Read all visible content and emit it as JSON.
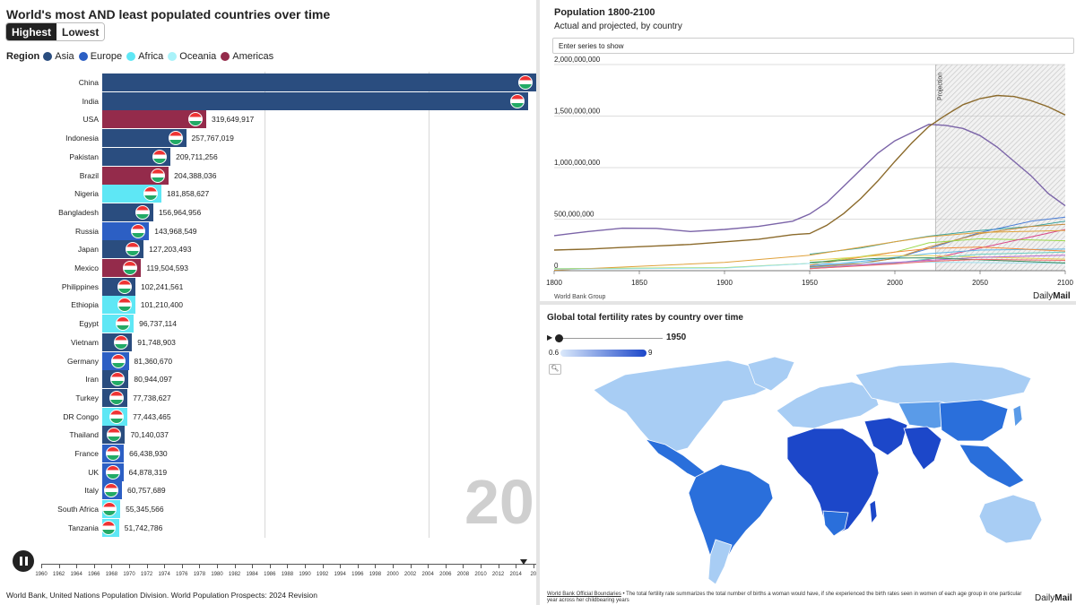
{
  "bar_panel": {
    "title": "World's most AND least populated countries over time",
    "toggle": {
      "highest": "Highest",
      "lowest": "Lowest",
      "active": "highest"
    },
    "legend_title": "Region",
    "regions": [
      {
        "name": "Asia",
        "color": "#2a4d7f"
      },
      {
        "name": "Europe",
        "color": "#2c5fc4"
      },
      {
        "name": "Africa",
        "color": "#5ee7f5"
      },
      {
        "name": "Oceania",
        "color": "#a9f2f9"
      },
      {
        "name": "Americas",
        "color": "#942b4b"
      }
    ],
    "year_watermark": "20",
    "source": "World Bank, United Nations Population Division. World Population Prospects: 2024 Revision",
    "timeline_ticks": [
      "1960",
      "1962",
      "1964",
      "1966",
      "1968",
      "1970",
      "1972",
      "1974",
      "1976",
      "1978",
      "1980",
      "1982",
      "1984",
      "1986",
      "1988",
      "1990",
      "1992",
      "1994",
      "1996",
      "1998",
      "2000",
      "2002",
      "2004",
      "2006",
      "2008",
      "2010",
      "2012",
      "2014",
      "20"
    ]
  },
  "line_panel": {
    "title": "Population 1800-2100",
    "subtitle": "Actual and projected, by country",
    "search_placeholder": "Enter series to show",
    "projection_label": "Projection",
    "source": "World Bank Group",
    "brand_left": "Daily",
    "brand_right": "Mail"
  },
  "map_panel": {
    "title": "Global total fertility rates by country over time",
    "play_icon": "play-icon",
    "year": "1950",
    "scale_min": "0.6",
    "scale_max": "9",
    "footnote_link": "World Bank Official Boundaries",
    "footnote_text": " • The total fertility rate summarizes the total number of births a woman would have, if she experienced the birth rates seen in women of each age group in one particular year across her childbearing years",
    "brand_left": "Daily",
    "brand_right": "Mail",
    "colors": {
      "low": "#a8cdf4",
      "mid": "#5a9be8",
      "high": "#2a6fdb",
      "very_high": "#1c47c9"
    }
  },
  "chart_data": [
    {
      "type": "bar",
      "title": "World's most AND least populated countries over time",
      "orientation": "horizontal",
      "categories": [
        "China",
        "India",
        "USA",
        "Indonesia",
        "Pakistan",
        "Brazil",
        "Nigeria",
        "Bangladesh",
        "Russia",
        "Japan",
        "Mexico",
        "Philippines",
        "Ethiopia",
        "Egypt",
        "Vietnam",
        "Germany",
        "Iran",
        "Turkey",
        "DR Congo",
        "Thailand",
        "France",
        "UK",
        "Italy",
        "South Africa",
        "Tanzania"
      ],
      "regions": [
        "Asia",
        "Asia",
        "Americas",
        "Asia",
        "Asia",
        "Americas",
        "Africa",
        "Asia",
        "Europe",
        "Asia",
        "Americas",
        "Asia",
        "Africa",
        "Africa",
        "Asia",
        "Europe",
        "Asia",
        "Asia",
        "Africa",
        "Asia",
        "Europe",
        "Europe",
        "Europe",
        "Africa",
        "Africa"
      ],
      "values": [
        1380000000,
        1310000000,
        319649917,
        257767019,
        209711256,
        204388036,
        181858627,
        156964956,
        143968549,
        127203493,
        119504593,
        102241561,
        101210400,
        96737114,
        91748903,
        81360670,
        80944097,
        77738627,
        77443465,
        70140037,
        66438930,
        64878319,
        60757689,
        55345566,
        51742786
      ],
      "value_labels": [
        "",
        "",
        "319,649,917",
        "257,767,019",
        "209,711,256",
        "204,388,036",
        "181,858,627",
        "156,964,956",
        "143,968,549",
        "127,203,493",
        "119,504,593",
        "102,241,561",
        "101,210,400",
        "96,737,114",
        "91,748,903",
        "81,360,670",
        "80,944,097",
        "77,738,627",
        "77,443,465",
        "70,140,037",
        "66,438,930",
        "64,878,319",
        "60,757,689",
        "55,345,566",
        "51,742,786"
      ]
    },
    {
      "type": "line",
      "title": "Population 1800-2100",
      "subtitle": "Actual and projected, by country",
      "xlim": [
        1800,
        2100
      ],
      "ylim": [
        0,
        2000000000
      ],
      "x_ticks": [
        "1800",
        "1850",
        "1900",
        "1950",
        "2000",
        "2050",
        "2100"
      ],
      "y_ticks": [
        "0",
        "500,000,000",
        "1,000,000,000",
        "1,500,000,000",
        "2,000,000,000"
      ],
      "projection_start": 2024,
      "series": [
        {
          "color": "#7b64a8",
          "points": [
            [
              1800,
              340000000
            ],
            [
              1820,
              380000000
            ],
            [
              1840,
              412000000
            ],
            [
              1860,
              410000000
            ],
            [
              1880,
              380000000
            ],
            [
              1900,
              400000000
            ],
            [
              1920,
              430000000
            ],
            [
              1940,
              480000000
            ],
            [
              1950,
              550000000
            ],
            [
              1960,
              660000000
            ],
            [
              1970,
              820000000
            ],
            [
              1980,
              980000000
            ],
            [
              1990,
              1140000000
            ],
            [
              2000,
              1260000000
            ],
            [
              2010,
              1340000000
            ],
            [
              2020,
              1420000000
            ],
            [
              2030,
              1410000000
            ],
            [
              2040,
              1380000000
            ],
            [
              2050,
              1310000000
            ],
            [
              2060,
              1200000000
            ],
            [
              2070,
              1060000000
            ],
            [
              2080,
              920000000
            ],
            [
              2090,
              750000000
            ],
            [
              2100,
              630000000
            ]
          ]
        },
        {
          "color": "#8b6a2b",
          "points": [
            [
              1800,
              200000000
            ],
            [
              1820,
              210000000
            ],
            [
              1840,
              225000000
            ],
            [
              1860,
              240000000
            ],
            [
              1880,
              255000000
            ],
            [
              1900,
              280000000
            ],
            [
              1920,
              305000000
            ],
            [
              1940,
              350000000
            ],
            [
              1950,
              360000000
            ],
            [
              1960,
              440000000
            ],
            [
              1970,
              555000000
            ],
            [
              1980,
              700000000
            ],
            [
              1990,
              870000000
            ],
            [
              2000,
              1060000000
            ],
            [
              2010,
              1240000000
            ],
            [
              2020,
              1400000000
            ],
            [
              2030,
              1510000000
            ],
            [
              2040,
              1610000000
            ],
            [
              2050,
              1670000000
            ],
            [
              2060,
              1700000000
            ],
            [
              2070,
              1690000000
            ],
            [
              2080,
              1650000000
            ],
            [
              2090,
              1590000000
            ],
            [
              2100,
              1510000000
            ]
          ]
        },
        {
          "color": "#3da5a0",
          "points": [
            [
              1950,
              160000000
            ],
            [
              1980,
              220000000
            ],
            [
              2000,
              280000000
            ],
            [
              2020,
              335000000
            ],
            [
              2050,
              390000000
            ],
            [
              2080,
              430000000
            ],
            [
              2100,
              480000000
            ]
          ]
        },
        {
          "color": "#4a7ed8",
          "points": [
            [
              1950,
              40000000
            ],
            [
              1980,
              75000000
            ],
            [
              2000,
              120000000
            ],
            [
              2020,
              215000000
            ],
            [
              2050,
              370000000
            ],
            [
              2080,
              480000000
            ],
            [
              2100,
              520000000
            ]
          ]
        },
        {
          "color": "#c48a3a",
          "points": [
            [
              1950,
              35000000
            ],
            [
              1980,
              70000000
            ],
            [
              2000,
              120000000
            ],
            [
              2020,
              230000000
            ],
            [
              2050,
              360000000
            ],
            [
              2080,
              430000000
            ],
            [
              2100,
              450000000
            ]
          ]
        },
        {
          "color": "#9bd94a",
          "points": [
            [
              1800,
              20000000
            ],
            [
              1900,
              30000000
            ],
            [
              1950,
              70000000
            ],
            [
              2000,
              180000000
            ],
            [
              2020,
              270000000
            ],
            [
              2050,
              310000000
            ],
            [
              2100,
              290000000
            ]
          ]
        },
        {
          "color": "#d94a8a",
          "points": [
            [
              1950,
              20000000
            ],
            [
              1980,
              50000000
            ],
            [
              2000,
              70000000
            ],
            [
              2020,
              110000000
            ],
            [
              2050,
              220000000
            ],
            [
              2100,
              400000000
            ]
          ]
        },
        {
          "color": "#e0a13a",
          "points": [
            [
              1800,
              5000000
            ],
            [
              1900,
              80000000
            ],
            [
              1950,
              150000000
            ],
            [
              2000,
              280000000
            ],
            [
              2020,
              330000000
            ],
            [
              2050,
              370000000
            ],
            [
              2100,
              390000000
            ]
          ]
        },
        {
          "color": "#5fb8e8",
          "points": [
            [
              1950,
              50000000
            ],
            [
              1980,
              90000000
            ],
            [
              2000,
              130000000
            ],
            [
              2020,
              165000000
            ],
            [
              2050,
              200000000
            ],
            [
              2100,
              210000000
            ]
          ]
        },
        {
          "color": "#f28b3a",
          "points": [
            [
              1950,
              55000000
            ],
            [
              2000,
              180000000
            ],
            [
              2020,
              215000000
            ],
            [
              2050,
              230000000
            ],
            [
              2100,
              190000000
            ]
          ]
        },
        {
          "color": "#e8d25a",
          "points": [
            [
              1950,
              100000000
            ],
            [
              1990,
              145000000
            ],
            [
              2020,
              145000000
            ],
            [
              2050,
              133000000
            ],
            [
              2100,
              112000000
            ]
          ]
        },
        {
          "color": "#6bd0c4",
          "points": [
            [
              1950,
              30000000
            ],
            [
              2000,
              75000000
            ],
            [
              2020,
              115000000
            ],
            [
              2050,
              160000000
            ],
            [
              2100,
              180000000
            ]
          ]
        },
        {
          "color": "#a0e0f0",
          "points": [
            [
              1800,
              15000000
            ],
            [
              1900,
              25000000
            ],
            [
              1950,
              70000000
            ],
            [
              2000,
              80000000
            ],
            [
              2020,
              83000000
            ],
            [
              2050,
              78000000
            ],
            [
              2100,
              70000000
            ]
          ]
        },
        {
          "color": "#b86ad0",
          "points": [
            [
              1950,
              22000000
            ],
            [
              2000,
              80000000
            ],
            [
              2020,
              100000000
            ],
            [
              2050,
              130000000
            ],
            [
              2100,
              150000000
            ]
          ]
        },
        {
          "color": "#3a8a5a",
          "points": [
            [
              1950,
              80000000
            ],
            [
              1990,
              120000000
            ],
            [
              2020,
              125000000
            ],
            [
              2050,
              105000000
            ],
            [
              2100,
              75000000
            ]
          ]
        },
        {
          "color": "#f06a6a",
          "points": [
            [
              1950,
              20000000
            ],
            [
              2000,
              65000000
            ],
            [
              2020,
              90000000
            ],
            [
              2050,
              110000000
            ],
            [
              2100,
              100000000
            ]
          ]
        }
      ]
    }
  ]
}
